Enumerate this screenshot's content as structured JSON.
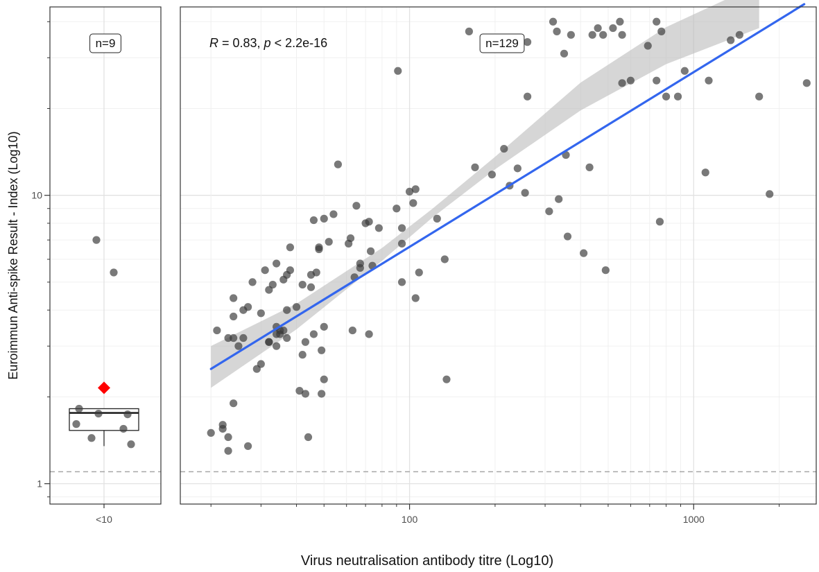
{
  "x_axis_label": "Virus neutralisation antibody titre (Log10)",
  "y_axis_label": "Euroimmun Anti-spike Result - Index (Log10)",
  "chart_data": [
    {
      "type": "box",
      "panel": "left",
      "annotation": "n=9",
      "categories": [
        "<10"
      ],
      "y_scale": "log10",
      "ylim": [
        0.85,
        45
      ],
      "y_ticks": [
        1,
        10
      ],
      "y_tick_labels": [
        "1",
        "10"
      ],
      "threshold_y": 1.1,
      "box": {
        "q1": 1.53,
        "median": 1.76,
        "q3": 1.82,
        "whisker_low": 1.35,
        "whisker_high": 1.82
      },
      "mean": 2.15,
      "points": [
        7.0,
        5.4,
        1.82,
        1.75,
        1.74,
        1.61,
        1.55,
        1.44,
        1.37
      ],
      "colors": {
        "mean_marker": "#ff0000",
        "points": "#3a3a3a"
      }
    },
    {
      "type": "scatter",
      "panel": "right",
      "annotation": "n=129",
      "correlation": {
        "R_symbol": "R",
        "R_text": " = 0.83, ",
        "p_symbol": "p",
        "p_text": " < 2.2e-16"
      },
      "x_scale": "log10",
      "y_scale": "log10",
      "xlim": [
        15.6,
        2700
      ],
      "ylim": [
        0.85,
        45
      ],
      "x_ticks": [
        100,
        1000
      ],
      "x_tick_labels": [
        "100",
        "1000"
      ],
      "threshold_y": 1.1,
      "points": [
        [
          20,
          1.5
        ],
        [
          21,
          3.4
        ],
        [
          22,
          1.6
        ],
        [
          22,
          1.55
        ],
        [
          23,
          1.3
        ],
        [
          23,
          1.45
        ],
        [
          23,
          3.2
        ],
        [
          24,
          1.9
        ],
        [
          24,
          3.2
        ],
        [
          24,
          3.8
        ],
        [
          24,
          4.4
        ],
        [
          25,
          3.0
        ],
        [
          26,
          3.2
        ],
        [
          26,
          4.0
        ],
        [
          27,
          1.35
        ],
        [
          27,
          4.1
        ],
        [
          28,
          5.0
        ],
        [
          29,
          2.5
        ],
        [
          30,
          2.6
        ],
        [
          30,
          3.9
        ],
        [
          31,
          5.5
        ],
        [
          32,
          3.1
        ],
        [
          32,
          3.1
        ],
        [
          32,
          4.7
        ],
        [
          33,
          4.9
        ],
        [
          34,
          3.0
        ],
        [
          34,
          3.3
        ],
        [
          34,
          3.5
        ],
        [
          34,
          5.8
        ],
        [
          35,
          3.3
        ],
        [
          35,
          3.4
        ],
        [
          36,
          3.4
        ],
        [
          36,
          5.1
        ],
        [
          37,
          3.2
        ],
        [
          37,
          5.3
        ],
        [
          37,
          4.0
        ],
        [
          38,
          6.6
        ],
        [
          38,
          5.5
        ],
        [
          40,
          4.1
        ],
        [
          41,
          2.1
        ],
        [
          42,
          2.8
        ],
        [
          42,
          4.9
        ],
        [
          43,
          2.05
        ],
        [
          43,
          3.1
        ],
        [
          44,
          1.45
        ],
        [
          45,
          4.8
        ],
        [
          45,
          5.3
        ],
        [
          46,
          3.3
        ],
        [
          46,
          8.2
        ],
        [
          47,
          5.4
        ],
        [
          48,
          6.5
        ],
        [
          48,
          6.6
        ],
        [
          49,
          2.05
        ],
        [
          49,
          2.9
        ],
        [
          50,
          2.3
        ],
        [
          50,
          3.5
        ],
        [
          50,
          8.3
        ],
        [
          52,
          6.9
        ],
        [
          54,
          8.6
        ],
        [
          56,
          12.8
        ],
        [
          61,
          6.8
        ],
        [
          62,
          7.1
        ],
        [
          63,
          3.4
        ],
        [
          64,
          5.2
        ],
        [
          65,
          9.2
        ],
        [
          67,
          5.6
        ],
        [
          67,
          5.8
        ],
        [
          70,
          8.0
        ],
        [
          72,
          8.1
        ],
        [
          72,
          3.3
        ],
        [
          73,
          6.4
        ],
        [
          74,
          5.7
        ],
        [
          78,
          7.7
        ],
        [
          90,
          9.0
        ],
        [
          91,
          27
        ],
        [
          94,
          7.7
        ],
        [
          94,
          6.8
        ],
        [
          94,
          5.0
        ],
        [
          100,
          10.3
        ],
        [
          103,
          9.4
        ],
        [
          105,
          10.5
        ],
        [
          105,
          4.4
        ],
        [
          108,
          5.4
        ],
        [
          125,
          8.3
        ],
        [
          133,
          6.0
        ],
        [
          135,
          2.3
        ],
        [
          162,
          37
        ],
        [
          170,
          12.5
        ],
        [
          195,
          11.8
        ],
        [
          215,
          14.5
        ],
        [
          225,
          10.8
        ],
        [
          240,
          12.4
        ],
        [
          255,
          10.2
        ],
        [
          260,
          34
        ],
        [
          260,
          22
        ],
        [
          310,
          8.8
        ],
        [
          320,
          40
        ],
        [
          330,
          37
        ],
        [
          335,
          9.7
        ],
        [
          350,
          31
        ],
        [
          355,
          13.8
        ],
        [
          360,
          7.2
        ],
        [
          370,
          36
        ],
        [
          410,
          6.3
        ],
        [
          430,
          12.5
        ],
        [
          440,
          36
        ],
        [
          460,
          38
        ],
        [
          480,
          36
        ],
        [
          490,
          5.5
        ],
        [
          520,
          38
        ],
        [
          550,
          40
        ],
        [
          560,
          36
        ],
        [
          560,
          24.5
        ],
        [
          600,
          25
        ],
        [
          690,
          33
        ],
        [
          740,
          40
        ],
        [
          740,
          25
        ],
        [
          760,
          8.1
        ],
        [
          770,
          37
        ],
        [
          800,
          22
        ],
        [
          880,
          22
        ],
        [
          930,
          27
        ],
        [
          1100,
          12
        ],
        [
          1130,
          25
        ],
        [
          1350,
          34.5
        ],
        [
          1450,
          36
        ],
        [
          1700,
          22
        ],
        [
          1850,
          10.1
        ],
        [
          2500,
          24.5
        ]
      ],
      "trend_line": {
        "x": [
          20,
          2450
        ],
        "y": [
          2.5,
          46
        ]
      },
      "confidence_band": {
        "x": [
          20,
          40,
          80,
          120,
          200,
          400,
          800,
          1700
        ],
        "lower": [
          2.15,
          3.43,
          5.93,
          8.35,
          12.3,
          19.7,
          28.5,
          38.0
        ],
        "upper": [
          3.0,
          4.21,
          6.57,
          8.96,
          13.6,
          24.6,
          38.3,
          54.0
        ]
      },
      "colors": {
        "trend_line": "#3366ee",
        "confidence_band": "#bdbdbd",
        "points": "#3a3a3a"
      }
    }
  ]
}
